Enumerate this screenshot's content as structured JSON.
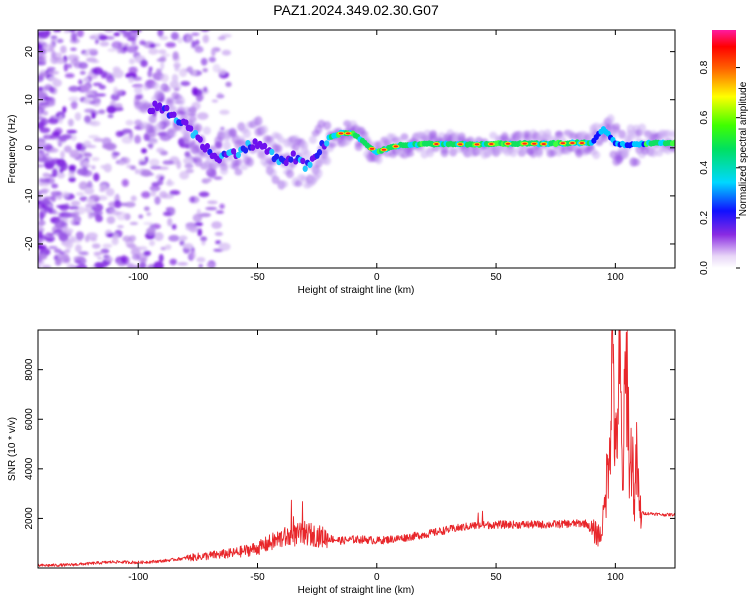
{
  "title": "PAZ1.2024.349.02.30.G07",
  "colors": {
    "snr_line": "#e8262a",
    "axis": "#000000"
  },
  "chart_data": [
    {
      "type": "heatmap",
      "xlabel": "Height of straight line (km)",
      "ylabel": "Frequency (Hz)",
      "xlim": [
        -142,
        125
      ],
      "ylim": [
        -25,
        24.5
      ],
      "xticks": [
        -100,
        -50,
        0,
        50,
        100
      ],
      "yticks": [
        -20,
        -10,
        0,
        10,
        20
      ],
      "colorbar": {
        "label": "Normalized spectral amplitude",
        "range": [
          0,
          0.95
        ],
        "ticks": [
          "0.0",
          "0.2",
          "0.4",
          "0.6",
          "0.8"
        ],
        "tick_values": [
          0.0,
          0.2,
          0.4,
          0.6,
          0.8
        ],
        "colormap": "rainbow (white-violet-blue-cyan-green-yellow-red-magenta)"
      },
      "ridge": {
        "description": "Dominant spectral ridge: frequency (Hz) vs height (km)",
        "x": [
          -100,
          -90,
          -80,
          -75,
          -70,
          -65,
          -60,
          -55,
          -50,
          -45,
          -40,
          -35,
          -30,
          -25,
          -20,
          -15,
          -10,
          -5,
          0,
          5,
          10,
          20,
          30,
          40,
          50,
          60,
          70,
          80,
          90,
          95,
          100,
          105,
          110,
          115,
          120,
          125
        ],
        "y": [
          9,
          8,
          5,
          2,
          -1,
          -2,
          -1,
          0,
          1,
          -1,
          -3,
          -2,
          -4,
          -1,
          2,
          3,
          3,
          1,
          -1,
          0,
          0.5,
          0.8,
          0.8,
          0.7,
          0.8,
          0.9,
          0.8,
          1,
          1,
          4,
          1,
          0.5,
          0.8,
          1,
          1,
          1
        ]
      }
    },
    {
      "type": "line",
      "xlabel": "Height of straight line (km)",
      "ylabel": "SNR (10 * v/v)",
      "xlim": [
        -142,
        125
      ],
      "ylim": [
        0,
        9600
      ],
      "xticks": [
        -100,
        -50,
        0,
        50,
        100
      ],
      "yticks": [
        2000,
        4000,
        6000,
        8000
      ],
      "series": [
        {
          "x": [
            -142,
            -130,
            -120,
            -110,
            -100,
            -90,
            -80,
            -70,
            -60,
            -50,
            -45,
            -40,
            -35,
            -30,
            -25,
            -20,
            -15,
            -10,
            -5,
            0,
            10,
            20,
            30,
            40,
            50,
            60,
            70,
            80,
            85,
            88,
            90,
            92,
            94,
            96,
            98,
            99,
            100,
            101,
            102,
            103,
            104,
            105,
            106,
            107,
            108,
            109,
            110,
            112,
            115,
            120,
            125
          ],
          "y": [
            100,
            120,
            180,
            250,
            220,
            280,
            400,
            500,
            600,
            800,
            1000,
            1200,
            1300,
            1400,
            1300,
            1200,
            1100,
            1150,
            1150,
            1100,
            1200,
            1350,
            1550,
            1700,
            1750,
            1750,
            1750,
            1780,
            1800,
            1800,
            1500,
            1400,
            1300,
            3000,
            6000,
            9400,
            4000,
            6500,
            8000,
            3000,
            7000,
            8200,
            3500,
            5000,
            2500,
            4500,
            2300,
            2200,
            2200,
            2150,
            2150
          ]
        }
      ]
    }
  ]
}
